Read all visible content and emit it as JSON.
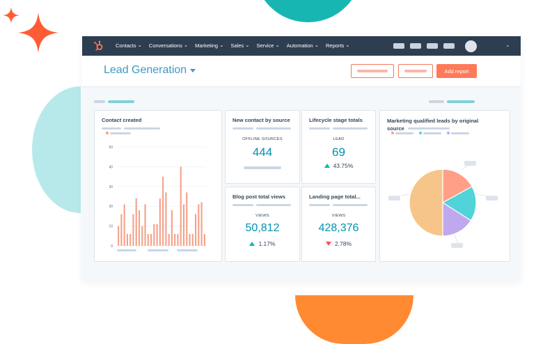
{
  "colors": {
    "nav_bg": "#2d3e50",
    "accent_blue": "#3e98c4",
    "metric_teal": "#0091ae",
    "primary_orange": "#ff7a59",
    "bar_orange": "#f4a28a",
    "up_green": "#00bda5",
    "down_red": "#f2545b"
  },
  "nav": {
    "items": [
      "Contacts",
      "Conversations",
      "Marketing",
      "Sales",
      "Service",
      "Automation",
      "Reports"
    ],
    "chevron": "⌄",
    "logo_icon": "hubspot-sprocket-icon"
  },
  "header": {
    "title": "Lead Generation",
    "add_report_label": "Add report"
  },
  "cards": {
    "contact_created": {
      "title": "Contact created"
    },
    "new_contact": {
      "title": "New contact by source",
      "label": "OFFLINE SOURCES",
      "value": "444"
    },
    "lifecycle": {
      "title": "Lifecycle stage totals",
      "label": "LEAD",
      "value": "69",
      "delta": "43.75%"
    },
    "blog_views": {
      "title": "Blog post total views",
      "label": "VIEWS",
      "value": "50,812",
      "delta": "1.17%"
    },
    "landing_views": {
      "title": "Landing page total...",
      "label": "VIEWS",
      "value": "428,376",
      "delta": "2.78%"
    },
    "mql": {
      "title": "Marketing qualified leads by original source"
    }
  },
  "chart_data": [
    {
      "type": "bar",
      "title": "Contact created",
      "ylim": [
        0,
        50
      ],
      "yticks": [
        "0",
        "10",
        "20",
        "30",
        "40",
        "50"
      ],
      "values": [
        10,
        16,
        21,
        6,
        6,
        16,
        24,
        18,
        10,
        21,
        6,
        6,
        11,
        11,
        24,
        35,
        27,
        6,
        18,
        6,
        6,
        40,
        21,
        27,
        6,
        6,
        16,
        21,
        22,
        6
      ]
    },
    {
      "type": "pie",
      "title": "Marketing qualified leads by original source",
      "series": [
        {
          "value": 17,
          "color": "#ff9f88"
        },
        {
          "value": 17,
          "color": "#51d3d9"
        },
        {
          "value": 16,
          "color": "#bfa8ee"
        },
        {
          "value": 50,
          "color": "#f7c589"
        }
      ]
    }
  ]
}
